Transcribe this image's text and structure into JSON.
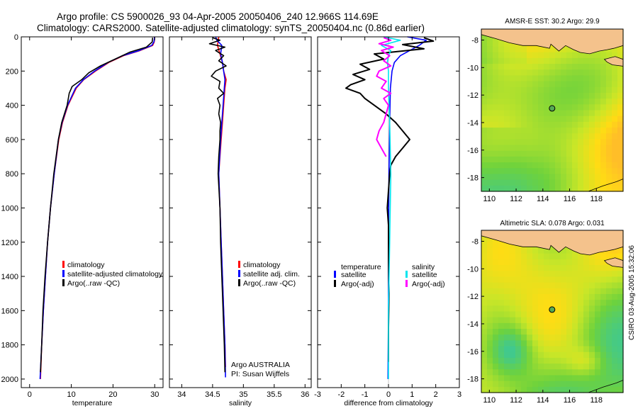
{
  "header": {
    "title1": "Argo profile: CS 5900026_93 04-Apr-2005 20050406_240 12.966S 114.69E",
    "title2": "Climatology: CARS2000. Satellite-adjusted climatology: synTS_20050404.nc (0.86d earlier)"
  },
  "side_stamp": "CSIRO 03-Aug-2005 15:32:06",
  "credit": {
    "line1": "Argo AUSTRALIA",
    "line2": "PI: Susan Wijffels"
  },
  "colors": {
    "climatology": "#ff0000",
    "satellite": "#0000ff",
    "argo": "#000000",
    "salinity": "#00e5ee",
    "argo_salinity": "#ff00ff",
    "land": "#f4c28c"
  },
  "chart_data": [
    {
      "type": "line",
      "id": "temperature",
      "xlabel": "temperature",
      "xlim": [
        -2,
        32
      ],
      "ylim": [
        0,
        2050
      ],
      "xticks": [
        0,
        10,
        20,
        30
      ],
      "xtick_labels": [
        "0",
        "10",
        "20",
        "30"
      ],
      "yticks": [
        0,
        200,
        400,
        600,
        800,
        1000,
        1200,
        1400,
        1600,
        1800,
        2000
      ],
      "ytick_labels": [
        "0",
        "200",
        "400",
        "600",
        "800",
        "1000",
        "1200",
        "1400",
        "1600",
        "1800",
        "2000"
      ],
      "legend": [
        "climatology",
        "satellite-adjusted climatology",
        "Argo(..raw -QC)"
      ],
      "series": [
        {
          "name": "climatology",
          "color": "#ff0000",
          "depth": [
            0,
            30,
            50,
            80,
            110,
            150,
            200,
            250,
            300,
            400,
            500,
            600,
            800,
            1000,
            1200,
            1400,
            1600,
            1800,
            2000
          ],
          "values": [
            30.0,
            29.9,
            29.5,
            26.5,
            22.5,
            19.0,
            15.8,
            13.0,
            11.2,
            9.2,
            7.9,
            7.0,
            5.9,
            5.0,
            4.3,
            3.8,
            3.3,
            2.9,
            2.6
          ]
        },
        {
          "name": "satellite-adjusted climatology",
          "color": "#0000ff",
          "depth": [
            0,
            30,
            50,
            80,
            110,
            150,
            200,
            250,
            300,
            400,
            500,
            600,
            800,
            1000,
            1200,
            1400,
            1600,
            1800,
            2000
          ],
          "values": [
            30.0,
            29.8,
            29.3,
            26.3,
            22.3,
            18.8,
            15.6,
            12.9,
            11.0,
            9.1,
            7.8,
            6.9,
            5.9,
            5.0,
            4.3,
            3.8,
            3.3,
            2.9,
            2.5
          ]
        },
        {
          "name": "Argo(..raw -QC)",
          "color": "#000000",
          "depth": [
            5,
            30,
            60,
            90,
            130,
            170,
            210,
            250,
            290,
            330,
            400,
            500,
            600,
            800,
            1000,
            1200,
            1400,
            1600,
            1800,
            1960
          ],
          "values": [
            29.5,
            29.4,
            28.0,
            24.0,
            20.5,
            17.0,
            14.2,
            12.5,
            10.2,
            9.5,
            9.0,
            7.7,
            6.9,
            5.8,
            5.0,
            4.3,
            3.7,
            3.2,
            2.9,
            2.6
          ]
        }
      ]
    },
    {
      "type": "line",
      "id": "salinity",
      "xlabel": "salinity",
      "xlim": [
        33.8,
        36.1
      ],
      "ylim": [
        0,
        2050
      ],
      "xticks": [
        34,
        34.5,
        35,
        35.5,
        36
      ],
      "xtick_labels": [
        "34",
        "34.5",
        "35",
        "35.5",
        "36"
      ],
      "legend": [
        "climatology",
        "satellite adj. clim.",
        "Argo(..raw -QC)"
      ],
      "series": [
        {
          "name": "climatology",
          "color": "#ff0000",
          "depth": [
            0,
            50,
            100,
            150,
            200,
            250,
            300,
            400,
            500,
            600,
            800,
            1000,
            1200,
            1400,
            1600,
            1800,
            1930
          ],
          "values": [
            34.6,
            34.58,
            34.62,
            34.66,
            34.68,
            34.72,
            34.7,
            34.68,
            34.66,
            34.64,
            34.6,
            34.62,
            34.64,
            34.66,
            34.68,
            34.7,
            34.71
          ]
        },
        {
          "name": "satellite adj. clim.",
          "color": "#0000ff",
          "depth": [
            0,
            20,
            50,
            100,
            150,
            200,
            250,
            300,
            400,
            500,
            600,
            800,
            1000,
            1200,
            1400,
            1600,
            1800,
            1990
          ],
          "values": [
            34.55,
            34.57,
            34.65,
            34.63,
            34.66,
            34.68,
            34.7,
            34.69,
            34.67,
            34.65,
            34.63,
            34.6,
            34.62,
            34.64,
            34.66,
            34.68,
            34.7,
            34.71
          ]
        },
        {
          "name": "Argo(..raw -QC)",
          "color": "#000000",
          "depth": [
            5,
            20,
            40,
            60,
            80,
            110,
            140,
            170,
            200,
            230,
            260,
            300,
            330,
            360,
            400,
            450,
            500,
            550,
            600,
            700,
            800,
            1000,
            1200,
            1400,
            1600,
            1800,
            1960
          ],
          "values": [
            34.5,
            34.62,
            34.45,
            34.7,
            34.55,
            34.68,
            34.6,
            34.72,
            34.55,
            34.48,
            34.62,
            34.6,
            34.68,
            34.58,
            34.62,
            34.6,
            34.63,
            34.62,
            34.62,
            34.6,
            34.59,
            34.62,
            34.63,
            34.65,
            34.67,
            34.69,
            34.7
          ]
        }
      ]
    },
    {
      "type": "line",
      "id": "difference",
      "xlabel": "difference from climatology",
      "xlim": [
        -3,
        3
      ],
      "ylim": [
        0,
        2050
      ],
      "xticks": [
        -3,
        -2,
        -1,
        0,
        1,
        2,
        3
      ],
      "xtick_labels": [
        "-3",
        "-2",
        "-1",
        "0",
        "1",
        "2",
        "3"
      ],
      "legend_left": {
        "heading": "temperature",
        "items": [
          "satellite",
          "Argo(-adj)"
        ]
      },
      "legend_right": {
        "heading": "salinity",
        "items": [
          "satellite",
          "Argo(-adj)"
        ]
      },
      "series": [
        {
          "name": "temperature satellite",
          "color": "#0000ff",
          "depth": [
            0,
            20,
            50,
            80,
            110,
            150,
            200,
            300,
            500,
            800,
            1200,
            1600,
            2000
          ],
          "values": [
            0.8,
            1.6,
            1.3,
            0.9,
            0.5,
            0.25,
            0.15,
            0.08,
            0.05,
            0.02,
            0.0,
            0.0,
            -0.02
          ]
        },
        {
          "name": "temperature Argo(-adj)",
          "color": "#000000",
          "depth": [
            5,
            25,
            45,
            70,
            100,
            130,
            160,
            190,
            220,
            250,
            280,
            300,
            330,
            360,
            400,
            450,
            500,
            550,
            600,
            650,
            700,
            750,
            800,
            900,
            1000,
            1100,
            1300,
            1500,
            1700,
            1900
          ],
          "values": [
            1.5,
            1.9,
            0.6,
            1.5,
            -0.6,
            -0.2,
            -1.2,
            -0.8,
            -1.5,
            -1.0,
            -1.6,
            -1.8,
            -1.2,
            -1.0,
            -0.6,
            -0.1,
            0.3,
            0.6,
            0.9,
            0.6,
            0.3,
            0.1,
            0.05,
            0.0,
            -0.05,
            0.0,
            0.0,
            0.02,
            0.0,
            0.0
          ]
        },
        {
          "name": "salinity satellite",
          "color": "#00e5ee",
          "depth": [
            0,
            20,
            50,
            80,
            110,
            150,
            200,
            300,
            500,
            800,
            1200,
            1600,
            2000
          ],
          "values": [
            -0.2,
            0.5,
            -0.3,
            0.1,
            0.0,
            -0.05,
            0.0,
            0.0,
            0.05,
            0.1,
            0.05,
            0.0,
            0.0
          ]
        },
        {
          "name": "salinity Argo(-adj)",
          "color": "#ff00ff",
          "depth": [
            5,
            20,
            40,
            60,
            80,
            110,
            140,
            170,
            200,
            230,
            260,
            300,
            330,
            360,
            400,
            450,
            500,
            550,
            600,
            650,
            700
          ],
          "values": [
            -0.2,
            0.1,
            -0.4,
            0.2,
            -0.3,
            0.05,
            -0.2,
            0.1,
            -0.4,
            -0.5,
            -0.1,
            -0.3,
            0.1,
            -0.2,
            0.0,
            -0.1,
            -0.2,
            -0.4,
            -0.5,
            -0.3,
            -0.1
          ]
        }
      ]
    }
  ],
  "maps": [
    {
      "id": "sst",
      "title": "AMSR-E SST: 30.2 Argo: 29.9",
      "xticks": [
        110,
        112,
        114,
        116,
        118
      ],
      "xtick_labels": [
        "110",
        "112",
        "114",
        "116",
        "118"
      ],
      "yticks": [
        -8,
        -10,
        -12,
        -14,
        -16,
        -18
      ],
      "ytick_labels": [
        "-8",
        "-10",
        "-12",
        "-14",
        "-16",
        "-18"
      ],
      "lon_range": [
        109.4,
        120.0
      ],
      "lat_range": [
        -19.0,
        -7.2
      ],
      "float_position": {
        "lon": 114.69,
        "lat": -12.966
      }
    },
    {
      "id": "sla",
      "title": "Altimetric SLA: 0.078 Argo: 0.031",
      "xticks": [
        110,
        112,
        114,
        116,
        118
      ],
      "xtick_labels": [
        "110",
        "112",
        "114",
        "116",
        "118"
      ],
      "yticks": [
        -8,
        -10,
        -12,
        -14,
        -16,
        -18
      ],
      "ytick_labels": [
        "-8",
        "-10",
        "-12",
        "-14",
        "-16",
        "-18"
      ],
      "lon_range": [
        109.4,
        120.0
      ],
      "lat_range": [
        -19.0,
        -7.2
      ],
      "float_position": {
        "lon": 114.69,
        "lat": -12.966
      }
    }
  ]
}
